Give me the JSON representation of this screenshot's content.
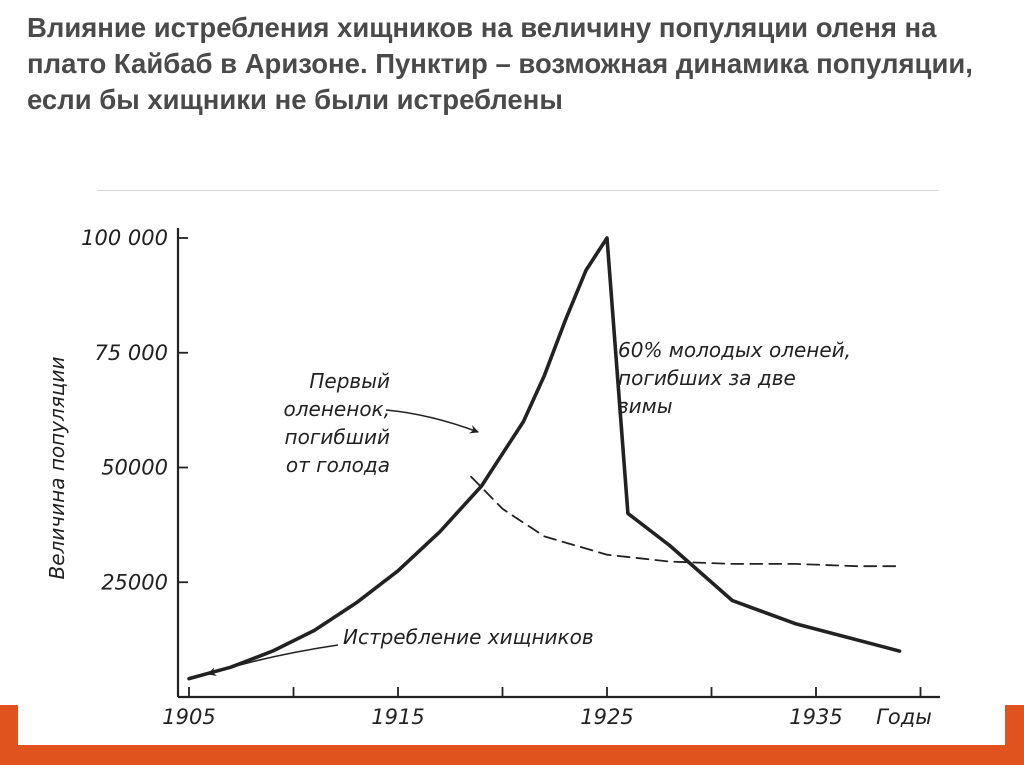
{
  "slide": {
    "title": "Влияние истребления хищников на величину популяции оленя на плато Кайбаб в Аризоне. Пунктир – возможная динамика популяции, если бы хищники не были истреблены",
    "accent_color": "#e0531f"
  },
  "chart_data": {
    "type": "line",
    "title": "",
    "xlabel": "Годы",
    "ylabel": "Величина популяции",
    "xlim": [
      1904,
      1941
    ],
    "ylim": [
      0,
      102000
    ],
    "x_ticks": [
      1905,
      1910,
      1915,
      1920,
      1925,
      1930,
      1935,
      1940
    ],
    "x_tick_labels": [
      "1905",
      "1915",
      "1925",
      "1935"
    ],
    "x_tick_label_values": [
      1905,
      1915,
      1925,
      1935
    ],
    "y_ticks": [
      25000,
      50000,
      75000,
      100000
    ],
    "y_tick_labels": [
      "25000",
      "50000",
      "75 000",
      "100 000"
    ],
    "grid": false,
    "legend": "none",
    "series": [
      {
        "style": "solid",
        "x": [
          1905,
          1907,
          1909,
          1911,
          1913,
          1915,
          1917,
          1919,
          1920,
          1921,
          1922,
          1923,
          1924,
          1925,
          1926,
          1928,
          1931,
          1934,
          1939
        ],
        "y": [
          4000,
          6500,
          10000,
          14500,
          20500,
          27500,
          36000,
          46000,
          53000,
          60000,
          70000,
          82000,
          93000,
          100000,
          40000,
          33000,
          21000,
          16000,
          10000
        ]
      },
      {
        "style": "dashed",
        "x": [
          1918.5,
          1920,
          1922,
          1925,
          1928,
          1931,
          1934,
          1937,
          1939
        ],
        "y": [
          48000,
          41000,
          35000,
          31000,
          29500,
          29000,
          29000,
          28500,
          28500
        ]
      }
    ],
    "annotations": [
      {
        "lines": [
          "Первый",
          "олененок,",
          "погибший",
          "от голода"
        ],
        "x": 1919.5,
        "y": 55000
      },
      {
        "lines": [
          "60% молодых оленей,",
          "погибших за две",
          "зимы"
        ],
        "x": 1925.3,
        "y": 75000
      },
      {
        "lines": [
          "Истребление хищников"
        ],
        "x": 1905.5,
        "y": 4000
      }
    ]
  }
}
